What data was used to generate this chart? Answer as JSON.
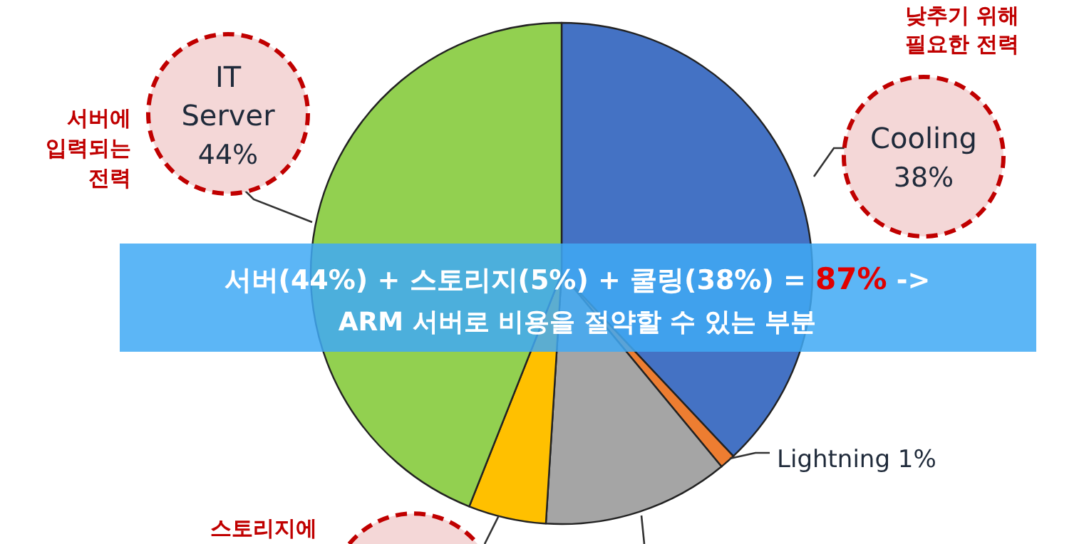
{
  "chart_data": {
    "type": "pie",
    "categories": [
      "Cooling",
      "Lightning",
      null,
      null,
      "IT Server"
    ],
    "values": [
      38,
      1,
      12,
      5,
      44
    ],
    "colors": [
      "#4472c4",
      "#ed7d31",
      "#a5a5a5",
      "#ffc000",
      "#92d050"
    ],
    "value_labels": [
      "38%",
      "1%",
      null,
      null,
      "44%"
    ],
    "annotations": [
      "낮추기 위해 필요한 전력",
      "서버에 입력되는 전력",
      "스토리지에",
      "서버(44%) + 스토리지(5%) + 쿨링(38%) = ",
      "87%",
      " ->",
      "ARM 서버로 비용을 절약할 수 있는 부분"
    ]
  }
}
